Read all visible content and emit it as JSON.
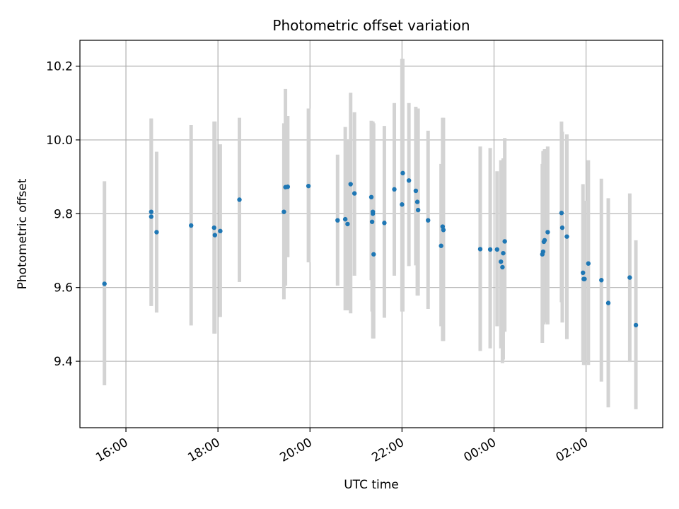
{
  "chart_data": {
    "type": "scatter",
    "title": "Photometric offset variation",
    "xlabel": "UTC time",
    "ylabel": "Photometric offset",
    "x_axis_kind": "time",
    "x_origin": "15:00",
    "x_tick_labels": [
      "16:00",
      "18:00",
      "20:00",
      "22:00",
      "00:00",
      "02:00"
    ],
    "y_tick_labels": [
      "9.4",
      "9.6",
      "9.8",
      "10.0",
      "10.2"
    ],
    "xlim": [
      "15:00",
      "03:40"
    ],
    "ylim": [
      9.22,
      10.27
    ],
    "grid": true,
    "colors": {
      "point": "#1f77b4",
      "errorbar": "#d3d3d3",
      "grid": "#b0b0b0"
    },
    "x": [
      "15:32",
      "16:33",
      "16:33",
      "16:40",
      "17:25",
      "17:55",
      "17:56",
      "18:03",
      "18:28",
      "19:26",
      "19:28",
      "19:31",
      "19:58",
      "20:36",
      "20:46",
      "20:49",
      "20:53",
      "20:58",
      "21:20",
      "21:21",
      "21:22",
      "21:22",
      "21:23",
      "21:37",
      "21:50",
      "22:00",
      "22:01",
      "22:09",
      "22:18",
      "22:20",
      "22:21",
      "22:34",
      "22:51",
      "22:53",
      "22:54",
      "23:42",
      "23:55",
      "00:04",
      "00:09",
      "00:11",
      "00:12",
      "00:14",
      "01:03",
      "01:04",
      "01:05",
      "01:06",
      "01:10",
      "01:28",
      "01:29",
      "01:35",
      "01:56",
      "01:57",
      "01:58",
      "02:03",
      "02:20",
      "02:29",
      "02:57",
      "03:05"
    ],
    "y": [
      9.61,
      9.805,
      9.792,
      9.75,
      9.768,
      9.762,
      9.742,
      9.753,
      9.838,
      9.805,
      9.872,
      9.873,
      9.875,
      9.782,
      9.785,
      9.772,
      9.88,
      9.855,
      9.845,
      9.778,
      9.8,
      9.805,
      9.69,
      9.775,
      9.866,
      9.825,
      9.91,
      9.89,
      9.862,
      9.832,
      9.81,
      9.782,
      9.713,
      9.765,
      9.756,
      9.704,
      9.703,
      9.703,
      9.67,
      9.655,
      9.693,
      9.725,
      9.69,
      9.697,
      9.724,
      9.728,
      9.75,
      9.802,
      9.762,
      9.738,
      9.64,
      9.623,
      9.623,
      9.665,
      9.62,
      9.558,
      9.627,
      9.498
    ],
    "y_err_low": [
      9.335,
      9.55,
      9.55,
      9.532,
      9.497,
      9.475,
      9.475,
      9.52,
      9.615,
      9.568,
      9.605,
      9.682,
      9.668,
      9.605,
      9.538,
      9.538,
      9.53,
      9.632,
      9.62,
      9.535,
      9.535,
      9.462,
      9.462,
      9.518,
      9.632,
      9.535,
      9.535,
      9.658,
      9.66,
      9.578,
      9.578,
      9.542,
      9.495,
      9.455,
      9.455,
      9.428,
      9.435,
      9.495,
      9.435,
      9.395,
      9.405,
      9.48,
      9.45,
      9.5,
      9.5,
      9.505,
      9.5,
      9.56,
      9.505,
      9.46,
      9.4,
      9.39,
      9.39,
      9.39,
      9.345,
      9.275,
      9.398,
      9.27
    ],
    "y_err_high": [
      9.888,
      10.058,
      10.058,
      9.968,
      10.04,
      10.05,
      10.05,
      9.988,
      10.06,
      10.045,
      10.138,
      10.065,
      10.085,
      9.96,
      10.035,
      10.0,
      10.128,
      10.075,
      10.052,
      10.05,
      10.05,
      10.045,
      10.045,
      10.038,
      10.1,
      10.22,
      10.22,
      10.1,
      10.09,
      10.085,
      10.085,
      10.025,
      9.935,
      10.06,
      10.06,
      9.982,
      9.978,
      9.915,
      9.945,
      9.945,
      9.95,
      10.005,
      9.935,
      9.97,
      9.97,
      9.975,
      9.982,
      10.05,
      10.022,
      10.015,
      9.88,
      9.835,
      9.835,
      9.945,
      9.895,
      9.842,
      9.855,
      9.728
    ]
  }
}
